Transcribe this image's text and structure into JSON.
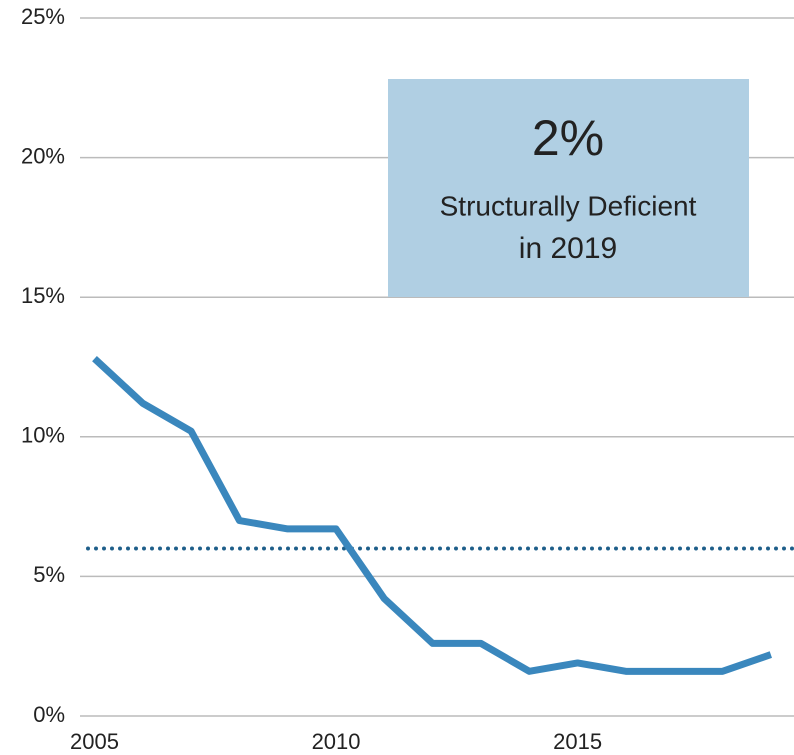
{
  "chart_data": {
    "type": "line",
    "x": [
      2005,
      2006,
      2007,
      2008,
      2009,
      2010,
      2011,
      2012,
      2013,
      2014,
      2015,
      2016,
      2017,
      2018,
      2019
    ],
    "series": [
      {
        "color": "#3a87bd",
        "values": [
          12.8,
          11.2,
          10.2,
          7.0,
          6.7,
          6.7,
          4.2,
          2.6,
          2.6,
          1.6,
          1.9,
          1.6,
          1.6,
          1.6,
          2.2
        ]
      }
    ],
    "reference_line": 6.0,
    "reference_color": "#1f5f8a",
    "xlim": [
      2004.7,
      2019.5
    ],
    "xticks": [
      2005,
      2010,
      2015
    ],
    "ylim": [
      0,
      25
    ],
    "yticks": [
      {
        "value": 0,
        "label": "0%"
      },
      {
        "value": 5,
        "label": "5%"
      },
      {
        "value": 10,
        "label": "10%"
      },
      {
        "value": 15,
        "label": "15%"
      },
      {
        "value": 20,
        "label": "20%"
      },
      {
        "value": 25,
        "label": "25%"
      }
    ],
    "grid": true,
    "annotation": {
      "value": "2%",
      "line1": "Structurally Deficient",
      "line2": "in 2019",
      "color": "#b0cfe3"
    }
  }
}
